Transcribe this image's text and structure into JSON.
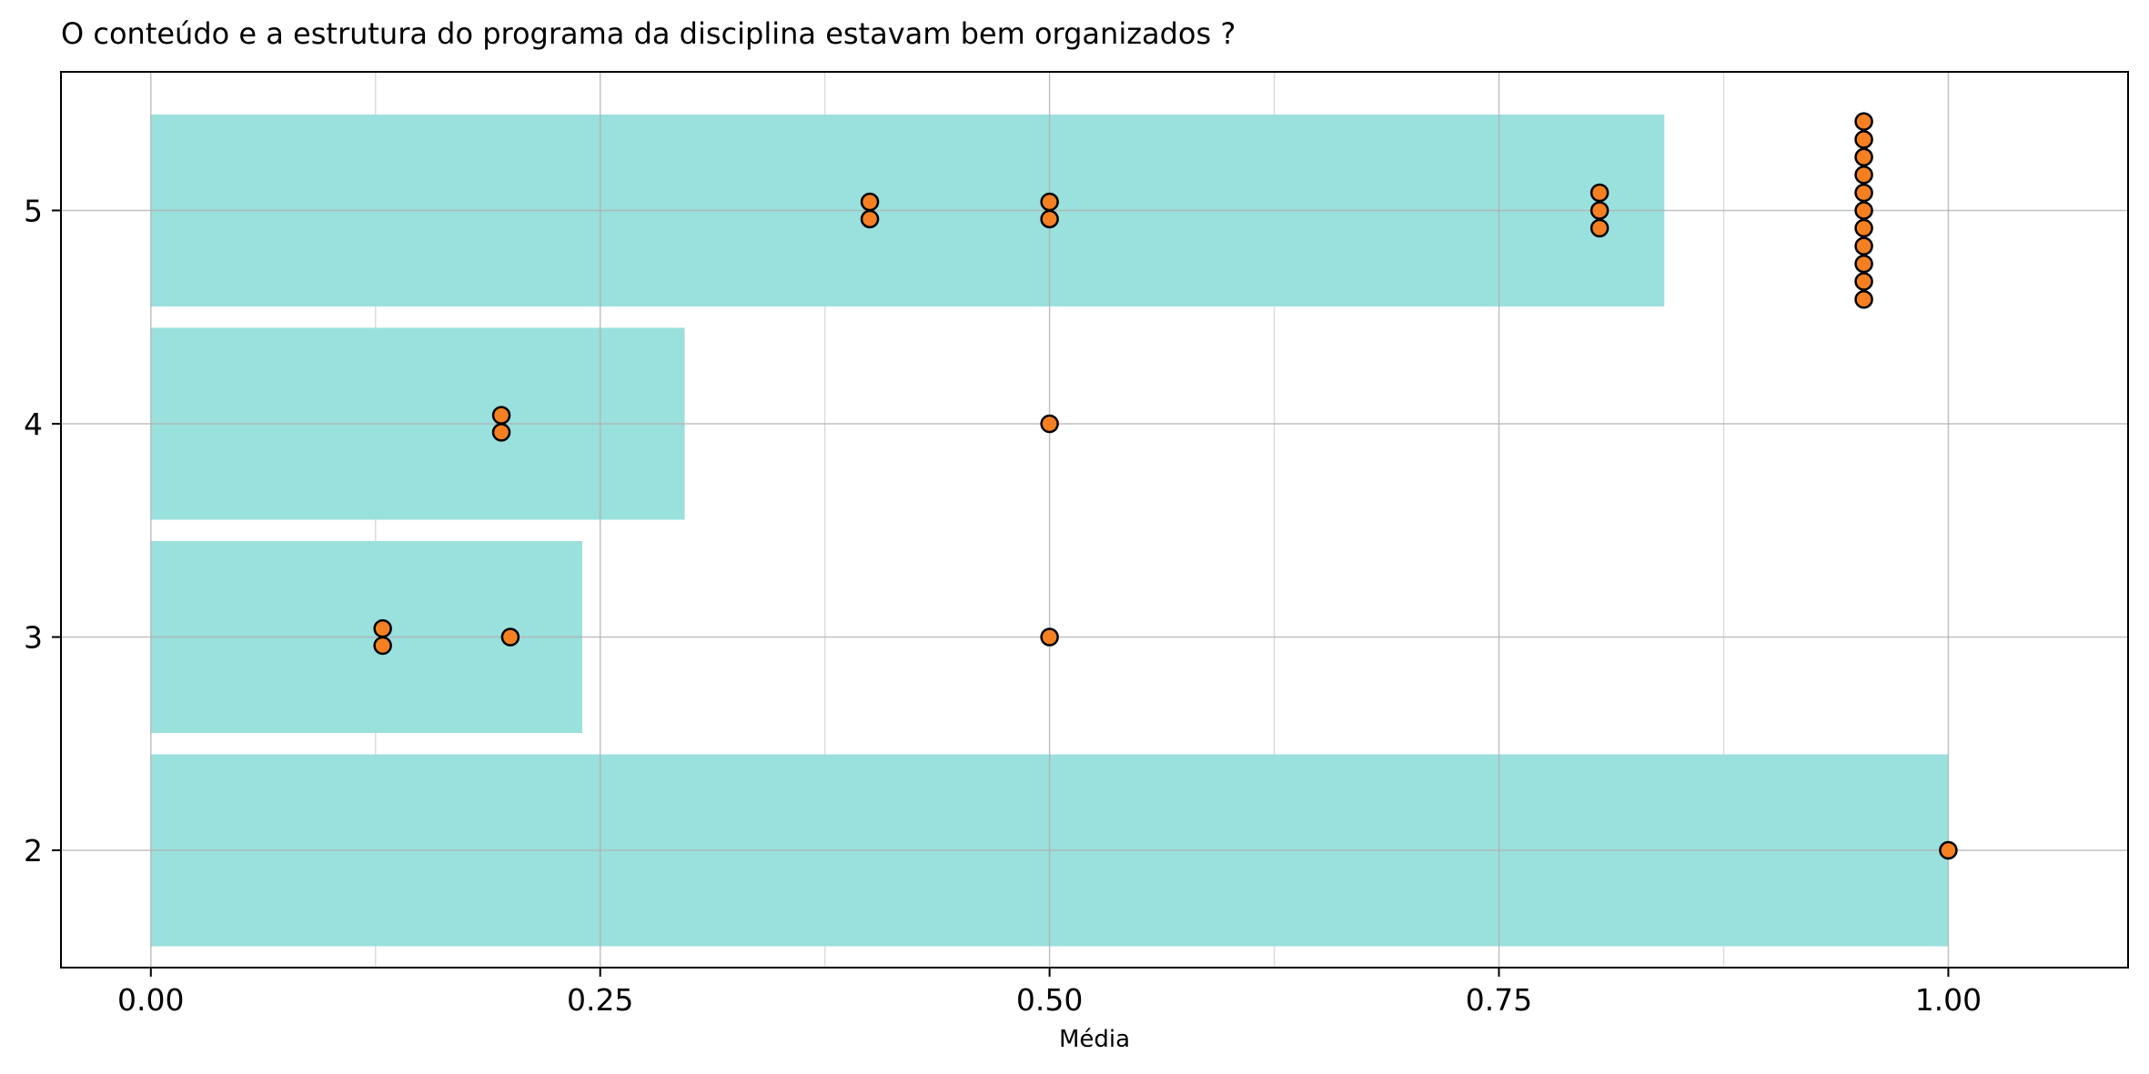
{
  "chart_data": {
    "type": "bar",
    "orientation": "horizontal",
    "title": "O conteúdo e a estrutura do programa da disciplina estavam bem organizados ?",
    "xlabel": "Média",
    "ylabel": "",
    "xlim": [
      -0.05,
      1.1
    ],
    "ylim": [
      1.45,
      5.65
    ],
    "x_ticks": [
      "0.00",
      "0.25",
      "0.50",
      "0.75",
      "1.00"
    ],
    "x_tick_values": [
      0,
      0.25,
      0.5,
      0.75,
      1.0
    ],
    "x_minor_ticks": [
      0.125,
      0.375,
      0.625,
      0.875
    ],
    "y_ticks": [
      "2",
      "3",
      "4",
      "5"
    ],
    "y_tick_values": [
      2,
      3,
      4,
      5
    ],
    "grid": true,
    "bars": [
      {
        "category": 2,
        "value": 1.0
      },
      {
        "category": 3,
        "value": 0.24
      },
      {
        "category": 4,
        "value": 0.297
      },
      {
        "category": 5,
        "value": 0.842
      }
    ],
    "points": [
      {
        "x": 0.4,
        "y": 5.04
      },
      {
        "x": 0.4,
        "y": 4.96
      },
      {
        "x": 0.5,
        "y": 5.04
      },
      {
        "x": 0.5,
        "y": 4.96
      },
      {
        "x": 0.806,
        "y": 5.083
      },
      {
        "x": 0.806,
        "y": 5.0
      },
      {
        "x": 0.806,
        "y": 4.917
      },
      {
        "x": 0.953,
        "y": 5.417
      },
      {
        "x": 0.953,
        "y": 5.333
      },
      {
        "x": 0.953,
        "y": 5.25
      },
      {
        "x": 0.953,
        "y": 5.167
      },
      {
        "x": 0.953,
        "y": 5.083
      },
      {
        "x": 0.953,
        "y": 5.0
      },
      {
        "x": 0.953,
        "y": 4.917
      },
      {
        "x": 0.953,
        "y": 4.833
      },
      {
        "x": 0.953,
        "y": 4.75
      },
      {
        "x": 0.953,
        "y": 4.667
      },
      {
        "x": 0.953,
        "y": 4.583
      },
      {
        "x": 0.195,
        "y": 4.04
      },
      {
        "x": 0.195,
        "y": 3.96
      },
      {
        "x": 0.5,
        "y": 4.0
      },
      {
        "x": 0.129,
        "y": 3.04
      },
      {
        "x": 0.129,
        "y": 2.96
      },
      {
        "x": 0.2,
        "y": 3.0
      },
      {
        "x": 0.5,
        "y": 3.0
      },
      {
        "x": 1.0,
        "y": 2.0
      }
    ],
    "colors": {
      "bar": "#9ae0dc",
      "point_fill": "#f58021",
      "point_edge": "#000000",
      "major_grid": "#b0b0b0",
      "minor_grid": "#dcdcdc"
    }
  }
}
